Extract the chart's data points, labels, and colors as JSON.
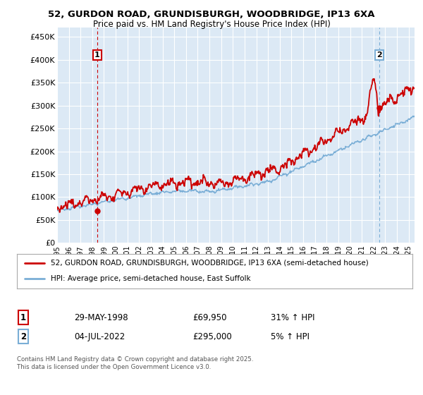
{
  "title1": "52, GURDON ROAD, GRUNDISBURGH, WOODBRIDGE, IP13 6XA",
  "title2": "Price paid vs. HM Land Registry's House Price Index (HPI)",
  "ylabel_ticks": [
    "£0",
    "£50K",
    "£100K",
    "£150K",
    "£200K",
    "£250K",
    "£300K",
    "£350K",
    "£400K",
    "£450K"
  ],
  "ytick_values": [
    0,
    50000,
    100000,
    150000,
    200000,
    250000,
    300000,
    350000,
    400000,
    450000
  ],
  "ylim": [
    0,
    470000
  ],
  "xlim_start": 1995.0,
  "xlim_end": 2025.5,
  "sale1_date": 1998.41,
  "sale1_price": 69950,
  "sale2_date": 2022.5,
  "sale2_price": 295000,
  "line_color_property": "#cc0000",
  "line_color_hpi": "#7aaed6",
  "vline1_color": "#cc0000",
  "vline2_color": "#7aaed6",
  "background_color": "#ffffff",
  "plot_bg_color": "#dce9f5",
  "grid_color": "#ffffff",
  "legend_label_property": "52, GURDON ROAD, GRUNDISBURGH, WOODBRIDGE, IP13 6XA (semi-detached house)",
  "legend_label_hpi": "HPI: Average price, semi-detached house, East Suffolk",
  "table_row1": [
    "1",
    "29-MAY-1998",
    "£69,950",
    "31% ↑ HPI"
  ],
  "table_row2": [
    "2",
    "04-JUL-2022",
    "£295,000",
    "5% ↑ HPI"
  ],
  "footnote": "Contains HM Land Registry data © Crown copyright and database right 2025.\nThis data is licensed under the Open Government Licence v3.0.",
  "xticks": [
    1995,
    1996,
    1997,
    1998,
    1999,
    2000,
    2001,
    2002,
    2003,
    2004,
    2005,
    2006,
    2007,
    2008,
    2009,
    2010,
    2011,
    2012,
    2013,
    2014,
    2015,
    2016,
    2017,
    2018,
    2019,
    2020,
    2021,
    2022,
    2023,
    2024,
    2025
  ]
}
